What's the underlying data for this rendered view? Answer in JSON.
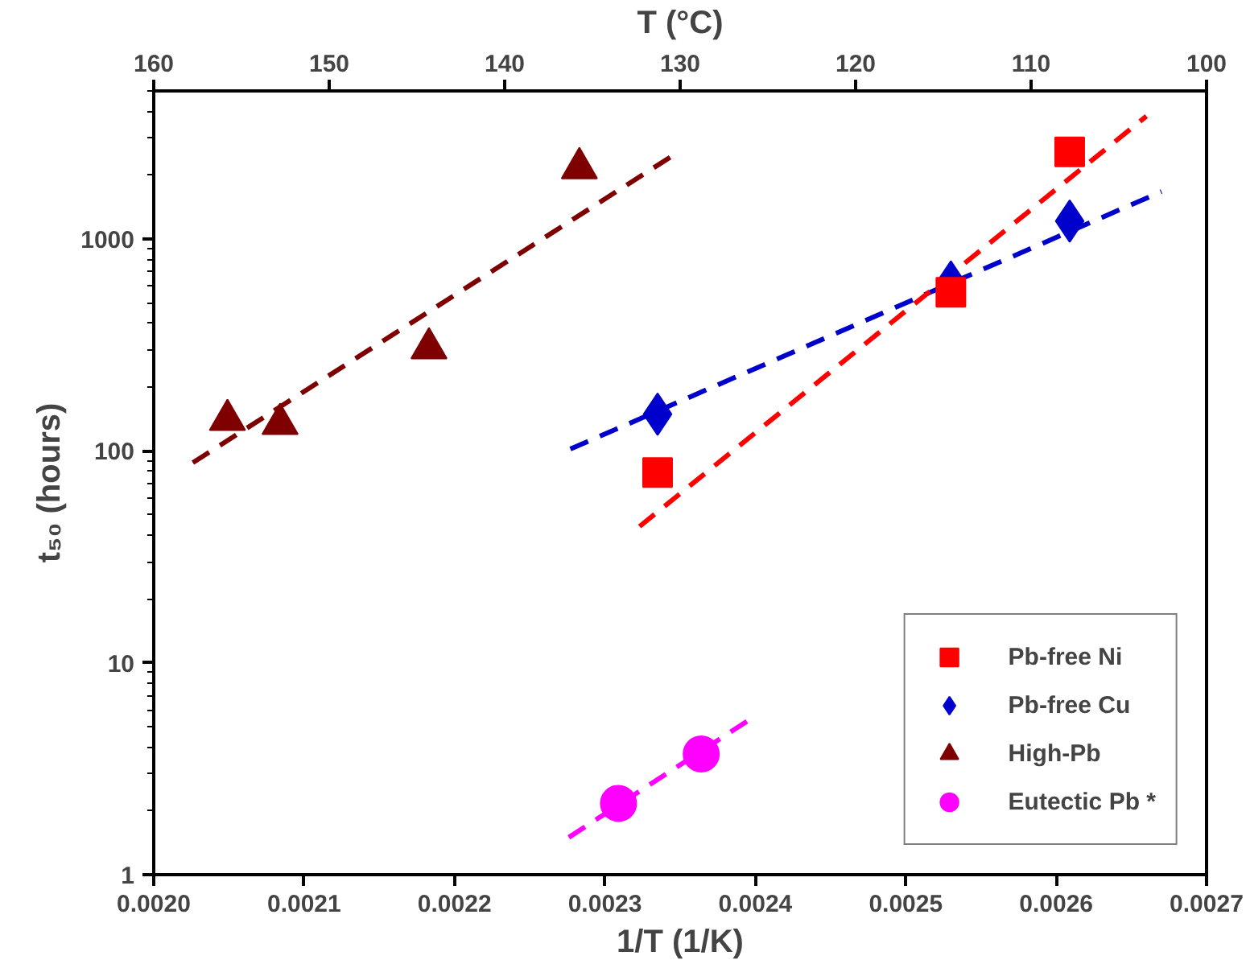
{
  "chart_data": {
    "type": "scatter",
    "xlabel": "1/T (1/K)",
    "ylabel": "t₅₀ (hours)",
    "x2label": "T (°C)",
    "xlim": [
      0.002,
      0.0027
    ],
    "xticks": [
      {
        "value": 0.002,
        "label": "0.0020"
      },
      {
        "value": 0.0021,
        "label": "0.0021"
      },
      {
        "value": 0.0022,
        "label": "0.0022"
      },
      {
        "value": 0.0023,
        "label": "0.0023"
      },
      {
        "value": 0.0024,
        "label": "0.0024"
      },
      {
        "value": 0.0025,
        "label": "0.0025"
      },
      {
        "value": 0.0026,
        "label": "0.0026"
      },
      {
        "value": 0.0027,
        "label": "0.0027"
      }
    ],
    "x2lim": [
      160,
      100
    ],
    "x2ticks": [
      160,
      150,
      140,
      130,
      120,
      110,
      100
    ],
    "ylim": [
      1,
      5000
    ],
    "yticks": [
      1,
      10,
      100,
      1000
    ],
    "log": "y",
    "grid": false,
    "legend": "bottom right",
    "series": [
      {
        "name": "Pb-free Ni",
        "color": "#ff0000",
        "marker": "square",
        "x": [
          0.002335,
          0.00253,
          0.002609
        ],
        "values": [
          79,
          560,
          2580
        ]
      },
      {
        "name": "Pb-free Cu",
        "color": "#0000cc",
        "marker": "diamond",
        "x": [
          0.002335,
          0.00253,
          0.002609
        ],
        "values": [
          149,
          626,
          1215
        ]
      },
      {
        "name": "High-Pb",
        "color": "#7f0000",
        "marker": "triangle",
        "x": [
          0.002049,
          0.002084,
          0.002183,
          0.002283
        ],
        "values": [
          140,
          134,
          305,
          2160
        ]
      },
      {
        "name": "Eutectic Pb *",
        "color": "#ff00ff",
        "marker": "circle",
        "x": [
          0.002309,
          0.002364
        ],
        "values": [
          2.17,
          3.71
        ]
      },
      {
        "type": "line",
        "color": "#ff0000",
        "line_style": "dashed",
        "x": [
          0.002323,
          0.00266
        ],
        "values": [
          44,
          3800
        ]
      },
      {
        "type": "line",
        "color": "#0000cc",
        "line_style": "dashed",
        "x": [
          0.002277,
          0.00267
        ],
        "values": [
          102,
          1675
        ]
      },
      {
        "type": "line",
        "color": "#7f0000",
        "line_style": "dashed",
        "x": [
          0.002026,
          0.002344
        ],
        "values": [
          88,
          2450
        ]
      },
      {
        "type": "line",
        "color": "#ff00ff",
        "line_style": "dashed",
        "x": [
          0.002276,
          0.002398
        ],
        "values": [
          1.5,
          5.5
        ]
      }
    ]
  }
}
